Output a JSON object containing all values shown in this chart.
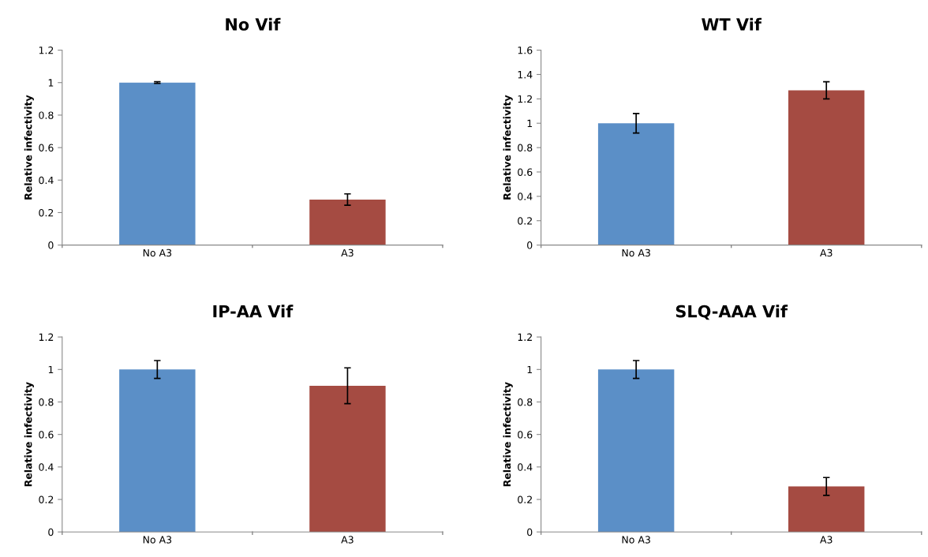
{
  "chart_data": [
    {
      "type": "bar",
      "title": "No Vif",
      "ylabel": "Relative infectivity",
      "categories": [
        "No A3",
        "A3"
      ],
      "values": [
        1.0,
        0.28
      ],
      "errors": [
        0.005,
        0.035
      ],
      "colors": [
        "#5b8fc7",
        "#a54b42"
      ],
      "ylim": [
        0,
        1.2
      ],
      "yticks": [
        0,
        0.2,
        0.4,
        0.6,
        0.8,
        1,
        1.2
      ],
      "grid": false
    },
    {
      "type": "bar",
      "title": "WT Vif",
      "ylabel": "Relative infectivity",
      "categories": [
        "No A3",
        "A3"
      ],
      "values": [
        1.0,
        1.27
      ],
      "errors": [
        0.08,
        0.07
      ],
      "colors": [
        "#5b8fc7",
        "#a54b42"
      ],
      "ylim": [
        0,
        1.6
      ],
      "yticks": [
        0,
        0.2,
        0.4,
        0.6,
        0.8,
        1,
        1.2,
        1.4,
        1.6
      ],
      "grid": false
    },
    {
      "type": "bar",
      "title": "IP-AA Vif",
      "ylabel": "Relative infectivity",
      "categories": [
        "No A3",
        "A3"
      ],
      "values": [
        1.0,
        0.9
      ],
      "errors": [
        0.055,
        0.11
      ],
      "colors": [
        "#5b8fc7",
        "#a54b42"
      ],
      "ylim": [
        0,
        1.2
      ],
      "yticks": [
        0,
        0.2,
        0.4,
        0.6,
        0.8,
        1,
        1.2
      ],
      "grid": false
    },
    {
      "type": "bar",
      "title": "SLQ-AAA Vif",
      "ylabel": "Relative infectivity",
      "categories": [
        "No A3",
        "A3"
      ],
      "values": [
        1.0,
        0.28
      ],
      "errors": [
        0.055,
        0.055
      ],
      "colors": [
        "#5b8fc7",
        "#a54b42"
      ],
      "ylim": [
        0,
        1.2
      ],
      "yticks": [
        0,
        0.2,
        0.4,
        0.6,
        0.8,
        1,
        1.2
      ],
      "grid": false
    }
  ]
}
